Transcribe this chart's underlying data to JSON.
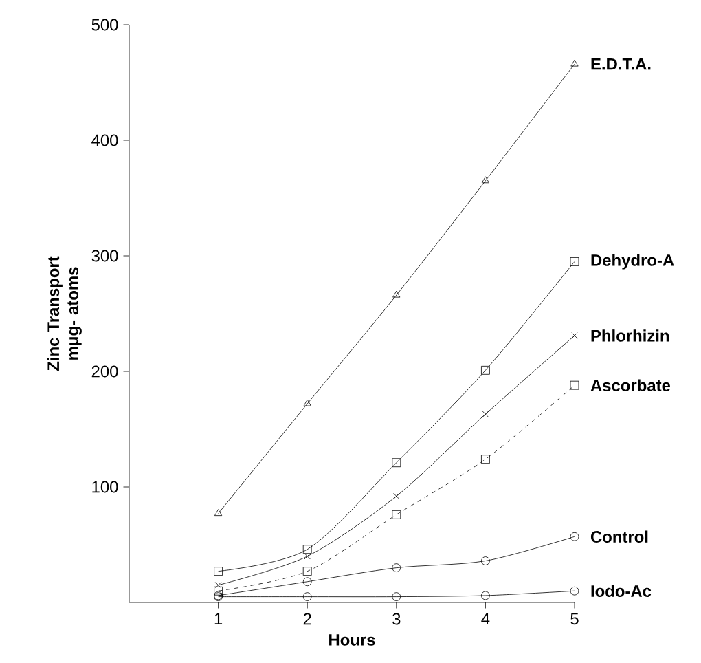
{
  "chart_data": {
    "type": "line",
    "xlabel": "Hours",
    "ylabel": "Zinc Transport mμg- atoms",
    "x": [
      1,
      2,
      3,
      4,
      5
    ],
    "xlim": [
      0,
      5
    ],
    "ylim": [
      0,
      500
    ],
    "xticks": [
      1,
      2,
      3,
      4,
      5
    ],
    "yticks": [
      100,
      200,
      300,
      400,
      500
    ],
    "legend": false,
    "grid": false,
    "series": [
      {
        "name": "E.D.T.A.",
        "color": "#000000",
        "marker": "triangle",
        "line_style": "solid",
        "values": [
          77,
          172,
          266,
          365,
          466
        ]
      },
      {
        "name": "Dehydro-A",
        "color": "#000000",
        "marker": "square",
        "line_style": "solid",
        "values": [
          27,
          46,
          121,
          201,
          295
        ]
      },
      {
        "name": "Phlorhizin",
        "color": "#000000",
        "marker": "cross",
        "line_style": "solid",
        "values": [
          15,
          40,
          92,
          163,
          231
        ]
      },
      {
        "name": "Ascorbate",
        "color": "#000000",
        "marker": "square",
        "line_style": "dashed",
        "values": [
          10,
          27,
          76,
          124,
          188
        ]
      },
      {
        "name": "Control",
        "color": "#000000",
        "marker": "circle",
        "line_style": "solid",
        "values": [
          6,
          18,
          30,
          36,
          57
        ]
      },
      {
        "name": "Iodo-Ac",
        "color": "#000000",
        "marker": "circle",
        "line_style": "solid",
        "values": [
          5,
          5,
          5,
          6,
          10
        ]
      }
    ]
  }
}
